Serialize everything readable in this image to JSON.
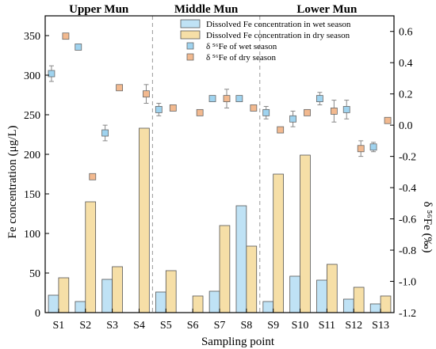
{
  "chart_data": {
    "type": "bar",
    "title": "",
    "xlabel": "Sampling point",
    "ylabel": "Fe concentration (μg/L)",
    "y2label": "δ ⁵⁶Fe (‰)",
    "categories": [
      "S1",
      "S2",
      "S3",
      "S4",
      "S5",
      "S6",
      "S7",
      "S8",
      "S9",
      "S10",
      "S11",
      "S12",
      "S13"
    ],
    "ylim": [
      0,
      375
    ],
    "y2lim": [
      -1.2,
      0.7
    ],
    "yticks": [
      0,
      50,
      100,
      150,
      200,
      250,
      300,
      350
    ],
    "y2ticks": [
      -1.2,
      -1.0,
      -0.8,
      -0.6,
      -0.4,
      -0.2,
      0.0,
      0.2,
      0.4,
      0.6
    ],
    "y2tick_labels": [
      "-1.2",
      "-1.0",
      "-0.8",
      "-0.6",
      "-0.4",
      "-0.2",
      "0.0",
      "0.2",
      "0.4",
      "0.6"
    ],
    "regions": [
      {
        "label": "Upper Mun",
        "start": 0,
        "end": 3
      },
      {
        "label": "Middle Mun",
        "start": 4,
        "end": 7
      },
      {
        "label": "Lower Mun",
        "start": 8,
        "end": 12
      }
    ],
    "series": [
      {
        "name": "Dissolved Fe concentration in wet season",
        "kind": "bar",
        "axis": "left",
        "color": "#bfe2f5",
        "values": [
          22,
          14,
          42,
          null,
          26,
          null,
          27,
          135,
          14,
          46,
          41,
          17,
          11
        ]
      },
      {
        "name": "Dissolved Fe concentration in dry season",
        "kind": "bar",
        "axis": "left",
        "color": "#f6dfa7",
        "values": [
          44,
          140,
          58,
          233,
          53,
          21,
          110,
          84,
          175,
          199,
          61,
          32,
          21
        ]
      },
      {
        "name": "δ ⁵⁶Fe of wet season",
        "kind": "scatter",
        "axis": "right",
        "color": "#9fd3ef",
        "values": [
          0.33,
          0.5,
          -0.05,
          null,
          0.1,
          null,
          0.17,
          0.17,
          0.08,
          0.04,
          0.17,
          0.1,
          -0.14
        ],
        "errors": [
          0.05,
          0.0,
          0.05,
          null,
          0.04,
          null,
          0.0,
          0.0,
          0.04,
          0.05,
          0.04,
          0.06,
          0.03
        ]
      },
      {
        "name": "δ ⁵⁶Fe of dry season",
        "kind": "scatter",
        "axis": "right",
        "color": "#f2b98f",
        "values": [
          0.57,
          -0.33,
          0.24,
          0.2,
          0.11,
          0.08,
          0.17,
          0.11,
          -0.03,
          0.08,
          0.09,
          -0.15,
          0.03
        ],
        "errors": [
          0.0,
          0.0,
          0.0,
          0.06,
          0.0,
          0.0,
          0.06,
          0.0,
          0.0,
          0.0,
          0.07,
          0.05,
          0.0
        ]
      }
    ],
    "legend_position": "top-right",
    "grid": false
  }
}
